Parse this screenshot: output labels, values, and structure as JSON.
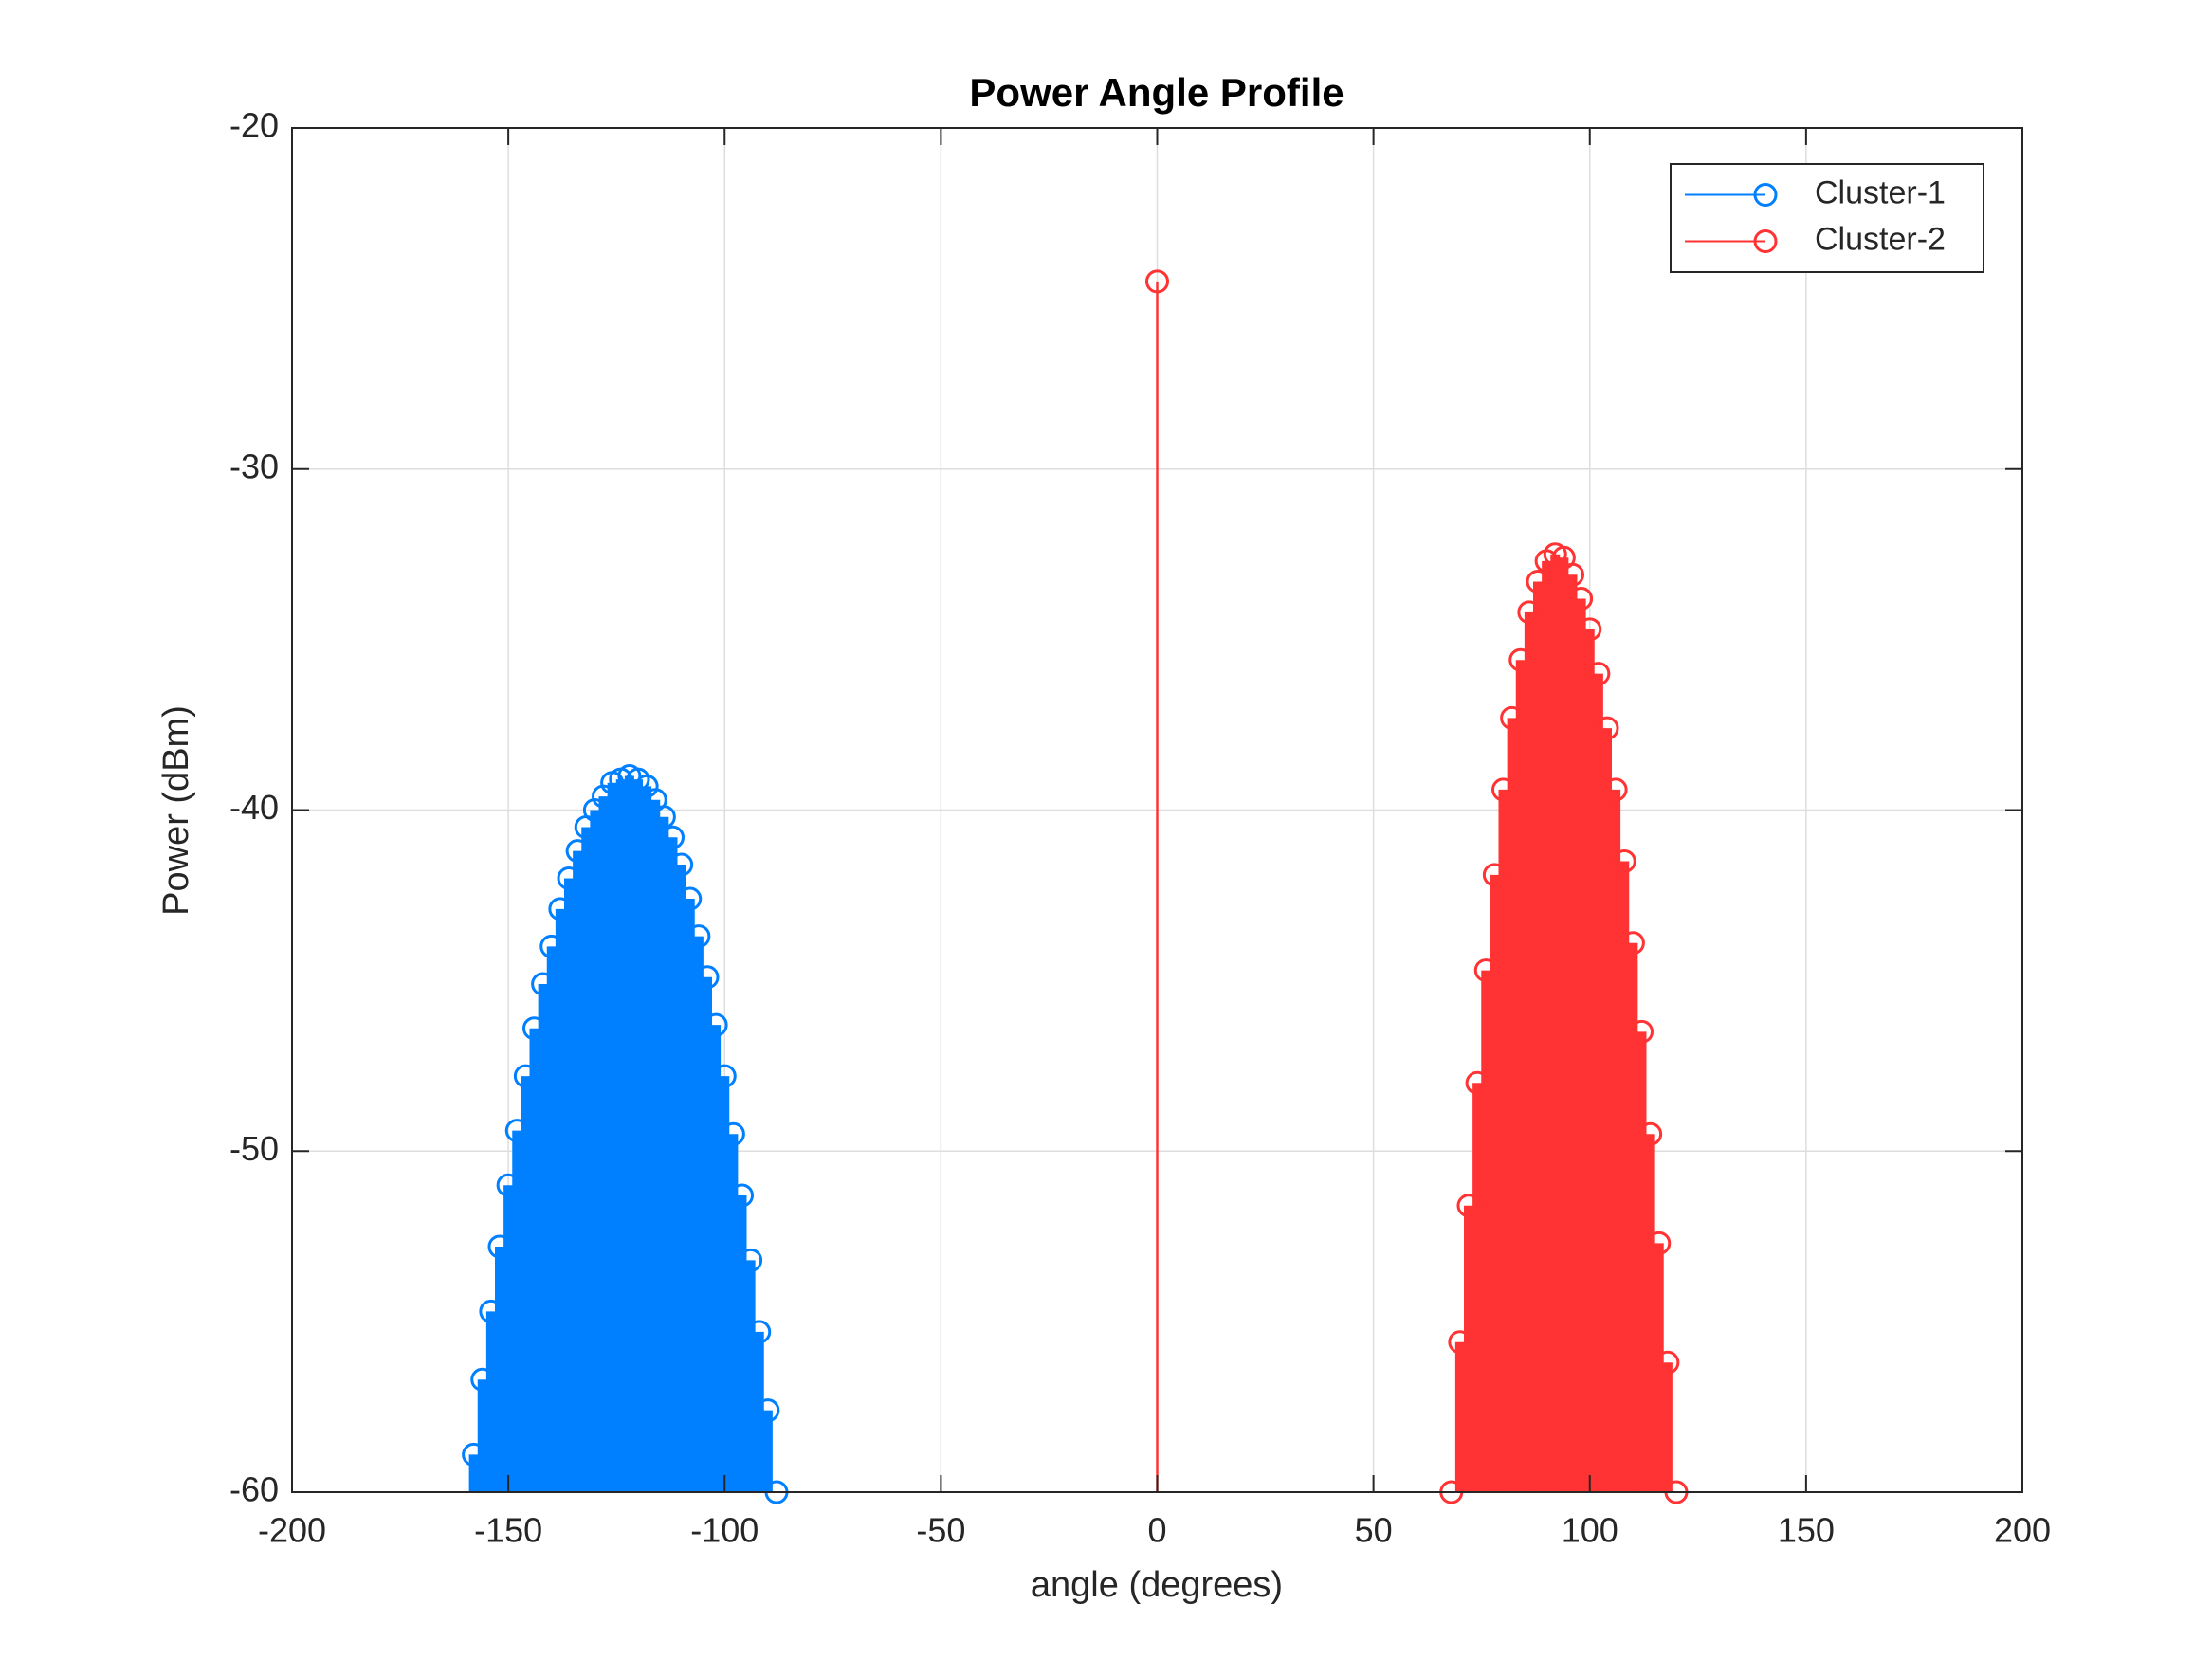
{
  "chart_data": {
    "type": "stem",
    "title": "Power Angle Profile",
    "x_label": "angle (degrees)",
    "y_label": "Power (dBm)",
    "xlim": [
      -200,
      200
    ],
    "ylim": [
      -60,
      -20
    ],
    "xticks": [
      -200,
      -150,
      -100,
      -50,
      0,
      50,
      100,
      150,
      200
    ],
    "yticks": [
      -60,
      -50,
      -40,
      -30,
      -20
    ],
    "grid": true,
    "legend_position": "top-right",
    "series": [
      {
        "name": "Cluster-1",
        "color": "#0080ff",
        "x": [
          -158,
          -156,
          -154,
          -152,
          -150,
          -148,
          -146,
          -144,
          -142,
          -140,
          -138,
          -136,
          -134,
          -132,
          -130,
          -128,
          -126,
          -124,
          -122,
          -120,
          -118,
          -116,
          -114,
          -112,
          -110,
          -108,
          -106,
          -104,
          -102,
          -100,
          -98,
          -96,
          -94,
          -92,
          -90,
          -88
        ],
        "values": [
          -58.9,
          -56.7,
          -54.7,
          -52.8,
          -51.0,
          -49.4,
          -47.8,
          -46.4,
          -45.1,
          -44.0,
          -42.9,
          -42.0,
          -41.2,
          -40.5,
          -40.0,
          -39.6,
          -39.2,
          -39.1,
          -39.0,
          -39.1,
          -39.3,
          -39.7,
          -40.2,
          -40.8,
          -41.6,
          -42.6,
          -43.7,
          -44.9,
          -46.3,
          -47.8,
          -49.5,
          -51.3,
          -53.2,
          -55.3,
          -57.6,
          -60.0
        ]
      },
      {
        "name": "Cluster-2",
        "color": "#ff3333",
        "x": [
          0,
          68,
          70,
          72,
          74,
          76,
          78,
          80,
          82,
          84,
          86,
          88,
          90,
          92,
          94,
          96,
          98,
          100,
          102,
          104,
          106,
          108,
          110,
          112,
          114,
          116,
          118,
          120
        ],
        "values": [
          -24.5,
          -60.0,
          -55.6,
          -51.6,
          -48.0,
          -44.7,
          -41.9,
          -39.4,
          -37.3,
          -35.6,
          -34.2,
          -33.3,
          -32.7,
          -32.5,
          -32.6,
          -33.1,
          -33.8,
          -34.7,
          -36.0,
          -37.6,
          -39.4,
          -41.5,
          -43.9,
          -46.5,
          -49.5,
          -52.7,
          -56.2,
          -60.0
        ]
      }
    ]
  }
}
